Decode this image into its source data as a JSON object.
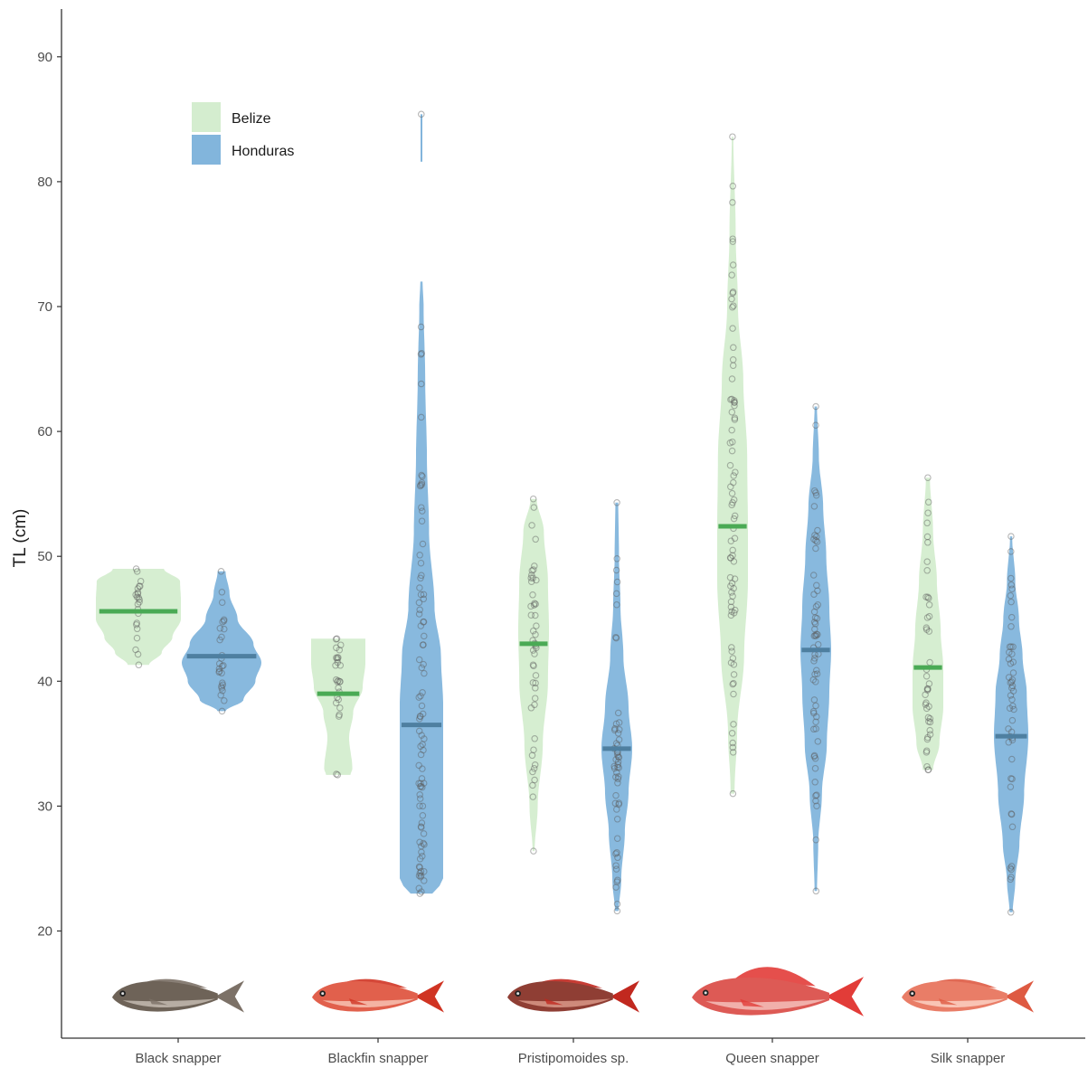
{
  "chart_data": {
    "type": "violin",
    "title": "",
    "xlabel": "",
    "ylabel": "TL (cm)",
    "ylim": [
      14,
      94
    ],
    "yticks": [
      20,
      30,
      40,
      50,
      60,
      70,
      80,
      90
    ],
    "grid": false,
    "legend_position": "top-left",
    "categories": [
      "Black snapper",
      "Blackfin snapper",
      "Pristipomoides sp.",
      "Queen snapper",
      "Silk snapper"
    ],
    "series": [
      {
        "name": "Belize",
        "fill": "#d4edcf",
        "median_color": "#4aaa55",
        "violins": [
          {
            "category": "Black snapper",
            "min": 41.3,
            "max": 49.0,
            "median": 45.6,
            "profile": [
              [
                41.3,
                0.25
              ],
              [
                42.3,
                0.55
              ],
              [
                43.5,
                0.8
              ],
              [
                45,
                1.0
              ],
              [
                46.5,
                1.0
              ],
              [
                48,
                0.98
              ],
              [
                49,
                0.6
              ]
            ]
          },
          {
            "category": "Blackfin snapper",
            "min": 32.5,
            "max": 43.4,
            "median": 39.0,
            "profile": [
              [
                32.5,
                0.45
              ],
              [
                33,
                0.52
              ],
              [
                35.5,
                0.4
              ],
              [
                37.5,
                0.55
              ],
              [
                39.5,
                0.9
              ],
              [
                41.5,
                1.0
              ],
              [
                43.4,
                1.0
              ]
            ]
          },
          {
            "category": "Pristipomoides sp.",
            "min": 26.4,
            "max": 54.6,
            "median": 43.0,
            "profile": [
              [
                26.4,
                0.05
              ],
              [
                30,
                0.2
              ],
              [
                35,
                0.45
              ],
              [
                40,
                0.7
              ],
              [
                44,
                0.75
              ],
              [
                48,
                0.7
              ],
              [
                52,
                0.5
              ],
              [
                54.6,
                0.15
              ]
            ]
          },
          {
            "category": "Queen snapper",
            "min": 31.0,
            "max": 83.6,
            "median": 52.4,
            "profile": [
              [
                31,
                0.05
              ],
              [
                36,
                0.12
              ],
              [
                42,
                0.3
              ],
              [
                48,
                0.4
              ],
              [
                52,
                0.4
              ],
              [
                58,
                0.38
              ],
              [
                64,
                0.28
              ],
              [
                70,
                0.14
              ],
              [
                76,
                0.08
              ],
              [
                83.6,
                0.02
              ]
            ]
          },
          {
            "category": "Silk snapper",
            "min": 32.9,
            "max": 56.3,
            "median": 41.1,
            "profile": [
              [
                32.9,
                0.2
              ],
              [
                35,
                0.45
              ],
              [
                38,
                0.6
              ],
              [
                41,
                0.6
              ],
              [
                44,
                0.5
              ],
              [
                48,
                0.35
              ],
              [
                52,
                0.2
              ],
              [
                56.3,
                0.08
              ]
            ]
          }
        ]
      },
      {
        "name": "Honduras",
        "fill": "#82b5dc",
        "median_color": "#4e7fa0",
        "violins": [
          {
            "category": "Black snapper",
            "min": 37.6,
            "max": 48.8,
            "median": 42.0,
            "profile": [
              [
                37.6,
                0.1
              ],
              [
                38.5,
                0.55
              ],
              [
                40,
                0.85
              ],
              [
                41.5,
                1.0
              ],
              [
                43,
                0.8
              ],
              [
                45,
                0.4
              ],
              [
                47,
                0.2
              ],
              [
                48.8,
                0.1
              ]
            ]
          },
          {
            "category": "Blackfin snapper",
            "min": 23.0,
            "max": 85.4,
            "median": 36.5,
            "profile": [
              [
                23,
                0.1
              ],
              [
                24,
                0.2
              ],
              [
                27,
                0.2
              ],
              [
                31,
                0.2
              ],
              [
                35,
                0.2
              ],
              [
                38,
                0.2
              ],
              [
                42,
                0.18
              ],
              [
                46,
                0.12
              ],
              [
                52,
                0.07
              ],
              [
                58,
                0.05
              ],
              [
                64,
                0.035
              ],
              [
                70,
                0.02
              ],
              [
                72,
                0.01
              ]
            ],
            "tail": [
              [
                81.6,
                0.008
              ],
              [
                85.4,
                0.008
              ]
            ]
          },
          {
            "category": "Pristipomoides sp.",
            "min": 21.6,
            "max": 54.3,
            "median": 34.6,
            "profile": [
              [
                21.6,
                0.05
              ],
              [
                24,
                0.12
              ],
              [
                28,
                0.22
              ],
              [
                31,
                0.32
              ],
              [
                34.6,
                0.42
              ],
              [
                38,
                0.32
              ],
              [
                42,
                0.18
              ],
              [
                46,
                0.1
              ],
              [
                50,
                0.06
              ],
              [
                54.3,
                0.04
              ]
            ]
          },
          {
            "category": "Queen snapper",
            "min": 23.2,
            "max": 62.0,
            "median": 42.5,
            "profile": [
              [
                23.2,
                0.02
              ],
              [
                27,
                0.04
              ],
              [
                31,
                0.1
              ],
              [
                35,
                0.18
              ],
              [
                39,
                0.22
              ],
              [
                42.5,
                0.25
              ],
              [
                46,
                0.22
              ],
              [
                50,
                0.17
              ],
              [
                54,
                0.12
              ],
              [
                58,
                0.05
              ],
              [
                62,
                0.02
              ]
            ]
          },
          {
            "category": "Silk snapper",
            "min": 21.5,
            "max": 51.6,
            "median": 35.6,
            "profile": [
              [
                21.5,
                0.03
              ],
              [
                24,
                0.08
              ],
              [
                27,
                0.16
              ],
              [
                31,
                0.25
              ],
              [
                35.6,
                0.33
              ],
              [
                39,
                0.3
              ],
              [
                42,
                0.22
              ],
              [
                45,
                0.15
              ],
              [
                48,
                0.08
              ],
              [
                51.6,
                0.02
              ]
            ]
          }
        ]
      }
    ]
  },
  "fish_icons": [
    {
      "category": "Black snapper",
      "body": "#6e6358",
      "belly": "#c4bab0",
      "fin": "#7c7167"
    },
    {
      "category": "Blackfin snapper",
      "body": "#e1604c",
      "belly": "#f7c2b3",
      "fin": "#d03423"
    },
    {
      "category": "Pristipomoides sp.",
      "body": "#8f3e34",
      "belly": "#d99888",
      "fin": "#c1281f"
    },
    {
      "category": "Queen snapper",
      "body": "#dd5a55",
      "belly": "#f4c0bb",
      "fin": "#e23c38"
    },
    {
      "category": "Silk snapper",
      "body": "#e97d67",
      "belly": "#fbd0c3",
      "fin": "#de5a42"
    }
  ]
}
